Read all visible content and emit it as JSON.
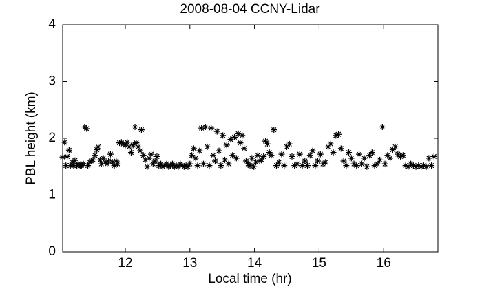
{
  "chart_data": {
    "type": "scatter",
    "title": "2008-08-04 CCNY-Lidar",
    "xlabel": "Local time (hr)",
    "ylabel": "PBL height (km)",
    "marker": "*",
    "color": "#000000",
    "xlim": [
      11.03,
      16.84
    ],
    "xticks": [
      12,
      13,
      14,
      15,
      16
    ],
    "ylim": [
      0,
      4
    ],
    "yticks": [
      0,
      1,
      2,
      3,
      4
    ],
    "x": [
      11.03,
      11.06,
      11.08,
      11.1,
      11.13,
      11.15,
      11.18,
      11.2,
      11.22,
      11.25,
      11.27,
      11.3,
      11.32,
      11.35,
      11.37,
      11.4,
      11.42,
      11.45,
      11.47,
      11.5,
      11.53,
      11.56,
      11.58,
      11.61,
      11.63,
      11.66,
      11.69,
      11.72,
      11.74,
      11.77,
      11.8,
      11.83,
      11.86,
      11.88,
      11.91,
      11.94,
      11.97,
      12.0,
      12.03,
      12.06,
      12.09,
      12.12,
      12.15,
      12.17,
      12.2,
      12.23,
      12.25,
      12.28,
      12.31,
      12.34,
      12.37,
      12.4,
      12.43,
      12.46,
      12.49,
      12.52,
      12.55,
      12.58,
      12.61,
      12.64,
      12.67,
      12.7,
      12.73,
      12.76,
      12.79,
      12.82,
      12.85,
      12.88,
      12.91,
      12.94,
      12.97,
      13.0,
      13.03,
      13.06,
      13.09,
      13.12,
      13.15,
      13.18,
      13.21,
      13.24,
      13.27,
      13.3,
      13.33,
      13.36,
      13.39,
      13.42,
      13.45,
      13.48,
      13.51,
      13.54,
      13.57,
      13.6,
      13.63,
      13.66,
      13.69,
      13.72,
      13.75,
      13.78,
      13.81,
      13.84,
      13.87,
      13.9,
      13.93,
      13.96,
      13.99,
      14.02,
      14.05,
      14.08,
      14.11,
      14.14,
      14.17,
      14.2,
      14.23,
      14.26,
      14.3,
      14.34,
      14.38,
      14.42,
      14.46,
      14.5,
      14.54,
      14.58,
      14.62,
      14.66,
      14.7,
      14.74,
      14.78,
      14.82,
      14.86,
      14.9,
      14.94,
      14.98,
      15.02,
      15.06,
      15.1,
      15.14,
      15.18,
      15.22,
      15.26,
      15.3,
      15.34,
      15.38,
      15.42,
      15.46,
      15.5,
      15.54,
      15.58,
      15.62,
      15.66,
      15.7,
      15.74,
      15.78,
      15.82,
      15.86,
      15.9,
      15.94,
      15.98,
      16.02,
      16.06,
      16.1,
      16.14,
      16.18,
      16.22,
      16.26,
      16.3,
      16.34,
      16.38,
      16.42,
      16.46,
      16.5,
      16.54,
      16.58,
      16.62,
      16.66,
      16.7,
      16.74,
      16.78
    ],
    "values": [
      1.67,
      1.93,
      1.52,
      1.68,
      1.79,
      1.52,
      1.58,
      1.52,
      1.61,
      1.52,
      1.55,
      1.52,
      1.52,
      1.55,
      2.2,
      2.17,
      1.52,
      1.58,
      1.6,
      1.62,
      1.7,
      1.8,
      1.85,
      1.62,
      1.55,
      1.65,
      1.58,
      1.55,
      1.6,
      1.72,
      1.58,
      1.52,
      1.6,
      1.55,
      1.92,
      1.93,
      1.9,
      1.88,
      1.93,
      1.85,
      1.75,
      1.88,
      2.2,
      1.92,
      1.85,
      1.78,
      2.15,
      1.7,
      1.62,
      1.5,
      1.65,
      1.72,
      1.55,
      1.6,
      1.68,
      1.52,
      1.55,
      1.5,
      1.52,
      1.55,
      1.5,
      1.52,
      1.55,
      1.5,
      1.52,
      1.5,
      1.55,
      1.52,
      1.5,
      1.52,
      1.5,
      1.55,
      1.7,
      1.82,
      1.65,
      1.52,
      1.78,
      2.18,
      1.55,
      2.2,
      1.85,
      1.52,
      2.18,
      1.7,
      1.6,
      2.12,
      1.78,
      1.52,
      2.05,
      1.62,
      1.88,
      1.55,
      1.98,
      1.7,
      2.02,
      1.65,
      2.08,
      1.92,
      2.05,
      1.82,
      1.6,
      1.55,
      1.52,
      1.65,
      1.5,
      1.58,
      1.7,
      1.6,
      1.62,
      1.68,
      1.95,
      1.9,
      1.75,
      1.7,
      2.15,
      1.52,
      1.58,
      1.72,
      1.52,
      1.85,
      1.9,
      1.68,
      1.52,
      1.55,
      1.72,
      1.52,
      1.6,
      1.52,
      1.7,
      1.78,
      1.52,
      1.6,
      1.72,
      1.55,
      1.58,
      1.85,
      1.9,
      1.75,
      2.05,
      2.07,
      1.82,
      1.6,
      1.52,
      1.75,
      1.65,
      1.55,
      1.52,
      1.72,
      1.55,
      1.65,
      1.5,
      1.7,
      1.75,
      1.52,
      1.55,
      1.62,
      2.2,
      1.55,
      1.7,
      1.65,
      1.8,
      1.85,
      1.72,
      1.68,
      1.7,
      1.52,
      1.5,
      1.55,
      1.52,
      1.5,
      1.52,
      1.5,
      1.52,
      1.5,
      1.65,
      1.52,
      1.68
    ]
  }
}
